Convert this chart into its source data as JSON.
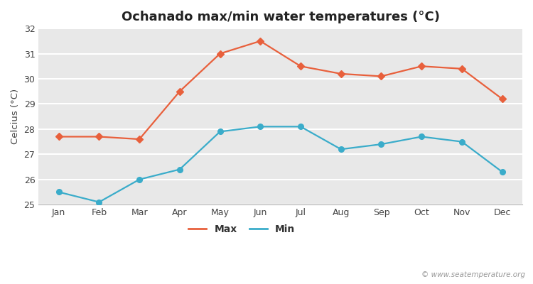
{
  "title": "Ochanado max/min water temperatures (°C)",
  "ylabel": "Celcius (°C)",
  "months": [
    "Jan",
    "Feb",
    "Mar",
    "Apr",
    "May",
    "Jun",
    "Jul",
    "Aug",
    "Sep",
    "Oct",
    "Nov",
    "Dec"
  ],
  "max_values": [
    27.7,
    27.7,
    27.6,
    29.5,
    31.0,
    31.5,
    30.5,
    30.2,
    30.1,
    30.5,
    30.4,
    29.2
  ],
  "min_values": [
    25.5,
    25.1,
    26.0,
    26.4,
    27.9,
    28.1,
    28.1,
    27.2,
    27.4,
    27.7,
    27.5,
    26.3
  ],
  "max_color": "#e8603c",
  "min_color": "#3aacca",
  "outer_bg_color": "#ffffff",
  "plot_bg_color": "#e8e8e8",
  "grid_color": "#ffffff",
  "ylim": [
    25.0,
    32.0
  ],
  "yticks": [
    25,
    26,
    27,
    28,
    29,
    30,
    31,
    32
  ],
  "legend_labels": [
    "Max",
    "Min"
  ],
  "watermark": "© www.seatemperature.org",
  "title_fontsize": 13,
  "label_fontsize": 9.5,
  "tick_fontsize": 9,
  "legend_fontsize": 10
}
